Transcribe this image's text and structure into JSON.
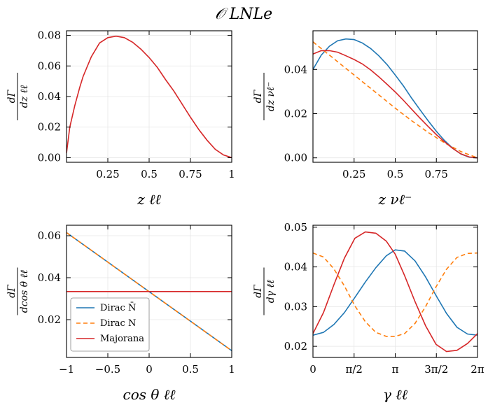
{
  "figure_title": "𝒪 LNLe",
  "chart_data": [
    {
      "id": "top-left",
      "type": "line",
      "xlabel": "z ℓℓ",
      "ylabel_num": "dΓ",
      "ylabel_den": "dz ℓℓ",
      "xlim": [
        0.0,
        1.0
      ],
      "ylim": [
        -0.003,
        0.083
      ],
      "xticks": [
        0.25,
        0.5,
        0.75,
        1.0
      ],
      "xtick_labels": [
        "0.25",
        "0.5",
        "0.75",
        "1"
      ],
      "yticks": [
        0.0,
        0.02,
        0.04,
        0.06,
        0.08
      ],
      "ytick_labels": [
        "0.00",
        "0.02",
        "0.04",
        "0.06",
        "0.08"
      ],
      "grid": true,
      "series": [
        {
          "color": "#d62728",
          "dash": "",
          "x": [
            0.0,
            0.02,
            0.05,
            0.08,
            0.1,
            0.15,
            0.2,
            0.25,
            0.3,
            0.35,
            0.4,
            0.45,
            0.5,
            0.55,
            0.6,
            0.65,
            0.7,
            0.75,
            0.8,
            0.85,
            0.9,
            0.95,
            1.0
          ],
          "y": [
            0.003,
            0.02,
            0.034,
            0.046,
            0.053,
            0.066,
            0.075,
            0.0785,
            0.0795,
            0.0785,
            0.0755,
            0.071,
            0.0655,
            0.059,
            0.051,
            0.0435,
            0.035,
            0.0265,
            0.0185,
            0.0115,
            0.0055,
            0.0018,
            0.0
          ]
        }
      ]
    },
    {
      "id": "top-right",
      "type": "line",
      "xlabel": "z νℓ⁻",
      "ylabel_num": "dΓ",
      "ylabel_den": "dz νℓ⁻",
      "xlim": [
        0.0,
        1.0
      ],
      "ylim": [
        -0.002,
        0.0575
      ],
      "xticks": [
        0.25,
        0.5,
        0.75
      ],
      "xtick_labels": [
        "0.25",
        "0.5",
        "0.75"
      ],
      "yticks": [
        0.0,
        0.02,
        0.04
      ],
      "ytick_labels": [
        "0.00",
        "0.02",
        "0.04"
      ],
      "grid": true,
      "series": [
        {
          "color": "#1f77b4",
          "dash": "",
          "x": [
            0.0,
            0.05,
            0.1,
            0.15,
            0.2,
            0.25,
            0.3,
            0.35,
            0.4,
            0.45,
            0.5,
            0.55,
            0.6,
            0.65,
            0.7,
            0.75,
            0.8,
            0.85,
            0.9,
            0.95,
            1.0
          ],
          "y": [
            0.04,
            0.0465,
            0.0505,
            0.053,
            0.0538,
            0.0535,
            0.052,
            0.0495,
            0.0462,
            0.0422,
            0.0375,
            0.0325,
            0.027,
            0.0218,
            0.0168,
            0.012,
            0.0078,
            0.0043,
            0.0017,
            0.0003,
            0.0
          ]
        },
        {
          "color": "#ff7f0e",
          "dash": "6,4",
          "x": [
            0.0,
            0.1,
            0.2,
            0.3,
            0.4,
            0.5,
            0.6,
            0.7,
            0.8,
            0.9,
            1.0
          ],
          "y": [
            0.0525,
            0.0465,
            0.0405,
            0.0345,
            0.0285,
            0.0225,
            0.0168,
            0.0115,
            0.0068,
            0.0028,
            0.0
          ]
        },
        {
          "color": "#d62728",
          "dash": "",
          "x": [
            0.0,
            0.05,
            0.1,
            0.15,
            0.2,
            0.25,
            0.3,
            0.35,
            0.4,
            0.45,
            0.5,
            0.55,
            0.6,
            0.65,
            0.7,
            0.75,
            0.8,
            0.85,
            0.9,
            0.95,
            1.0
          ],
          "y": [
            0.047,
            0.0485,
            0.0485,
            0.0478,
            0.0462,
            0.0445,
            0.0425,
            0.0398,
            0.0367,
            0.0333,
            0.0298,
            0.026,
            0.022,
            0.018,
            0.0142,
            0.0105,
            0.0072,
            0.0042,
            0.0018,
            0.0004,
            0.0
          ]
        }
      ]
    },
    {
      "id": "bottom-left",
      "type": "line",
      "xlabel": "cos θ ℓℓ",
      "ylabel_num": "dΓ",
      "ylabel_den": "dcos θ ℓℓ",
      "xlim": [
        -1.0,
        1.0
      ],
      "ylim": [
        0.002,
        0.065
      ],
      "xticks": [
        -1.0,
        -0.5,
        0.0,
        0.5,
        1.0
      ],
      "xtick_labels": [
        "−1",
        "−0.5",
        "0",
        "0.5",
        "1"
      ],
      "yticks": [
        0.02,
        0.04,
        0.06
      ],
      "ytick_labels": [
        "0.02",
        "0.04",
        "0.06"
      ],
      "grid": true,
      "legend": {
        "position": "lower-left",
        "entries": [
          "Dirac N̄",
          "Dirac N",
          "Majorana"
        ]
      },
      "series": [
        {
          "color": "#1f77b4",
          "dash": "",
          "x": [
            -1.0,
            1.0
          ],
          "y": [
            0.0615,
            0.0052
          ]
        },
        {
          "color": "#ff7f0e",
          "dash": "6,4",
          "x": [
            -1.0,
            1.0
          ],
          "y": [
            0.0615,
            0.0052
          ]
        },
        {
          "color": "#d62728",
          "dash": "",
          "x": [
            -1.0,
            1.0
          ],
          "y": [
            0.0334,
            0.0334
          ]
        }
      ]
    },
    {
      "id": "bottom-right",
      "type": "line",
      "xlabel": "γ ℓℓ",
      "ylabel_num": "dΓ",
      "ylabel_den": "dγ ℓℓ",
      "xlim": [
        0.0,
        6.2832
      ],
      "ylim": [
        0.0172,
        0.0505
      ],
      "xticks": [
        0.0,
        1.5708,
        3.1416,
        4.7124,
        6.2832
      ],
      "xtick_labels": [
        "0",
        "π/2",
        "π",
        "3π/2",
        "2π"
      ],
      "yticks": [
        0.02,
        0.03,
        0.04,
        0.05
      ],
      "ytick_labels": [
        "0.02",
        "0.03",
        "0.04",
        "0.05"
      ],
      "grid": true,
      "series": [
        {
          "color": "#1f77b4",
          "dash": "",
          "x": [
            0.0,
            0.4,
            0.8,
            1.2,
            1.6,
            2.0,
            2.4,
            2.8,
            3.1416,
            3.5,
            3.9,
            4.3,
            4.7,
            5.1,
            5.5,
            5.9,
            6.2832
          ],
          "y": [
            0.0228,
            0.0235,
            0.0255,
            0.0285,
            0.0323,
            0.0362,
            0.0398,
            0.0428,
            0.0443,
            0.044,
            0.0415,
            0.0375,
            0.0328,
            0.0283,
            0.0248,
            0.0231,
            0.0228
          ]
        },
        {
          "color": "#ff7f0e",
          "dash": "6,4",
          "x": [
            0.0,
            0.4,
            0.8,
            1.2,
            1.6,
            2.0,
            2.4,
            2.8,
            3.1416,
            3.5,
            3.9,
            4.3,
            4.7,
            5.1,
            5.5,
            5.9,
            6.2832
          ],
          "y": [
            0.0435,
            0.0425,
            0.0395,
            0.0352,
            0.0302,
            0.0262,
            0.0235,
            0.0225,
            0.0225,
            0.0232,
            0.0258,
            0.03,
            0.035,
            0.0394,
            0.0424,
            0.0434,
            0.0435
          ]
        },
        {
          "color": "#d62728",
          "dash": "",
          "x": [
            0.0,
            0.4,
            0.8,
            1.2,
            1.6,
            2.0,
            2.4,
            2.8,
            3.1416,
            3.5,
            3.9,
            4.3,
            4.7,
            5.1,
            5.5,
            5.9,
            6.2832
          ],
          "y": [
            0.0232,
            0.0285,
            0.0355,
            0.0422,
            0.0472,
            0.0488,
            0.0485,
            0.0465,
            0.0432,
            0.0378,
            0.0312,
            0.0252,
            0.0205,
            0.0187,
            0.019,
            0.0207,
            0.0232
          ]
        }
      ]
    }
  ]
}
